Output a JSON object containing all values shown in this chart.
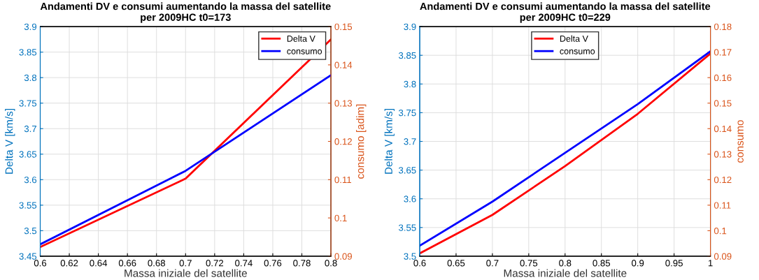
{
  "chart_data": [
    {
      "type": "line",
      "title": "Andamenti DV e consumi aumentando la massa del satellite\nper 2009HC t0=173",
      "xlabel": "Massa iniziale del satellite",
      "ylabel": "Delta V [km/s]",
      "y2label": "consumo [adim]",
      "x": [
        0.6,
        0.7,
        0.8
      ],
      "series": [
        {
          "name": "Delta V",
          "color": "#ff0000",
          "values": [
            3.468,
            3.602,
            3.875
          ]
        },
        {
          "name": "consumo",
          "color": "#0000ff",
          "axis": "y2",
          "values": [
            0.0931,
            0.1123,
            0.1373
          ]
        }
      ],
      "xlim": [
        0.6,
        0.8
      ],
      "xticks": [
        0.6,
        0.62,
        0.64,
        0.66,
        0.68,
        0.7,
        0.72,
        0.74,
        0.76,
        0.78,
        0.8
      ],
      "ylim": [
        3.45,
        3.9
      ],
      "yticks": [
        3.45,
        3.5,
        3.55,
        3.6,
        3.65,
        3.7,
        3.75,
        3.8,
        3.85,
        3.9
      ],
      "y2lim": [
        0.09,
        0.15
      ],
      "y2ticks": [
        0.09,
        0.1,
        0.11,
        0.12,
        0.13,
        0.14,
        0.15
      ],
      "grid": true,
      "legend": "top right",
      "line_style": "solid",
      "marker": "none"
    },
    {
      "type": "line",
      "title": "Andamenti DV e consumi aumentando la massa del satellite\nper 2009HC t0=229",
      "xlabel": "Massa iniziale del satellite",
      "ylabel": "Delta V [km/s]",
      "y2label": "consumo",
      "x": [
        0.6,
        0.7,
        0.8,
        0.9,
        1
      ],
      "series": [
        {
          "name": "Delta V",
          "color": "#ff0000",
          "values": [
            3.505,
            3.572,
            3.657,
            3.748,
            3.853
          ]
        },
        {
          "name": "consumo",
          "color": "#0000ff",
          "axis": "y2",
          "values": [
            0.0941,
            0.1114,
            0.1305,
            0.1496,
            0.1703
          ]
        }
      ],
      "xlim": [
        0.6,
        1
      ],
      "xticks": [
        0.6,
        0.65,
        0.7,
        0.75,
        0.8,
        0.85,
        0.9,
        0.95,
        1
      ],
      "ylim": [
        3.5,
        3.9
      ],
      "yticks": [
        3.5,
        3.55,
        3.6,
        3.65,
        3.7,
        3.75,
        3.8,
        3.85,
        3.9
      ],
      "y2lim": [
        0.09,
        0.18
      ],
      "y2ticks": [
        0.09,
        0.1,
        0.11,
        0.12,
        0.13,
        0.14,
        0.15,
        0.16,
        0.17,
        0.18
      ],
      "grid": true,
      "legend": "top",
      "line_style": "solid",
      "marker": "none"
    }
  ]
}
